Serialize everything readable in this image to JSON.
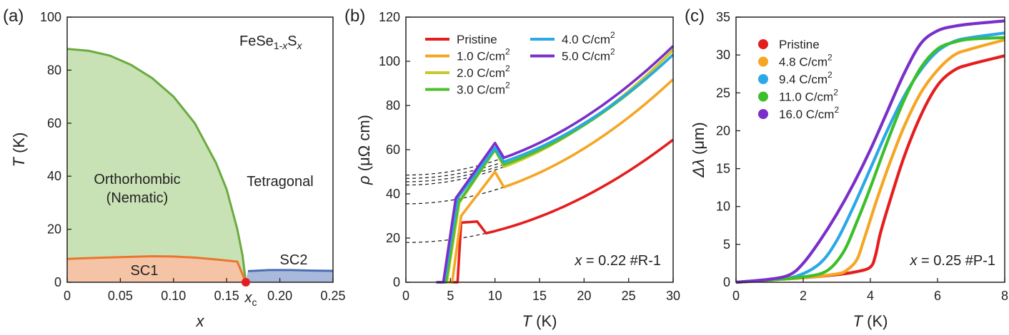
{
  "chart_data": [
    {
      "type": "area",
      "panel_label": "(a)",
      "title": "FeSe1-xSx",
      "title_main": "FeSe",
      "title_sub1": "1-",
      "title_sub2": "x",
      "title_s": "S",
      "title_sub3": "x",
      "xlabel": "x",
      "ylabel_italic": "T",
      "ylabel_unit": " (K)",
      "xlim": [
        0,
        0.25
      ],
      "ylim": [
        0,
        100
      ],
      "xticks": [
        0,
        0.05,
        0.1,
        0.15,
        0.2,
        0.25
      ],
      "xtick_labels": [
        "0",
        "0.05",
        "0.10",
        "0.15",
        "0.20",
        "0.25"
      ],
      "yticks": [
        0,
        20,
        40,
        60,
        80,
        100
      ],
      "ytick_labels": [
        "0",
        "20",
        "40",
        "60",
        "80",
        "100"
      ],
      "regions": {
        "nematic": {
          "name": "Orthorhombic (Nematic)",
          "line1": "Orthorhombic",
          "line2": "(Nematic)",
          "color": "#6aaa3f",
          "fill": "#c9e2b5",
          "x": [
            0,
            0.02,
            0.04,
            0.06,
            0.08,
            0.1,
            0.12,
            0.14,
            0.15,
            0.16,
            0.165,
            0.168
          ],
          "y": [
            88,
            87.3,
            85.5,
            82,
            77,
            70,
            60,
            45,
            35,
            20,
            10,
            0
          ]
        },
        "sc1": {
          "name": "SC1",
          "color": "#e8762d",
          "fill": "#f5c4a6",
          "x": [
            0,
            0.02,
            0.05,
            0.08,
            0.1,
            0.12,
            0.14,
            0.16,
            0.168
          ],
          "y": [
            8.8,
            9.1,
            9.5,
            9.8,
            9.7,
            9.3,
            8.6,
            7.8,
            0
          ]
        },
        "sc2": {
          "name": "SC2",
          "color": "#4a6db3",
          "fill": "#a9b9dc",
          "x": [
            0.168,
            0.17,
            0.19,
            0.21,
            0.23,
            0.25
          ],
          "y": [
            0,
            4.2,
            4.6,
            4.6,
            4.4,
            4.3
          ]
        }
      },
      "tetragonal_label": "Tetragonal",
      "critical_point": {
        "x": 0.168,
        "y": 0,
        "label_main": "x",
        "label_sub": "c",
        "color": "#e41e1e"
      }
    },
    {
      "type": "line",
      "panel_label": "(b)",
      "xlabel_italic": "T",
      "xlabel_unit": " (K)",
      "ylabel_italic": "ρ",
      "ylabel_unit": " (μΩ cm)",
      "xlim": [
        0,
        30
      ],
      "ylim": [
        0,
        120
      ],
      "xticks": [
        0,
        5,
        10,
        15,
        20,
        25,
        30
      ],
      "xtick_labels": [
        "0",
        "5",
        "10",
        "15",
        "20",
        "25",
        "30"
      ],
      "yticks": [
        0,
        20,
        40,
        60,
        80,
        100,
        120
      ],
      "ytick_labels": [
        "0",
        "20",
        "40",
        "60",
        "80",
        "100",
        "120"
      ],
      "annotation_italic": "x",
      "annotation_rest": " = 0.22 #R-1",
      "series": [
        {
          "name": "Pristine",
          "legend_main": "Pristine",
          "legend_sup": "",
          "color": "#e41e1e",
          "onset": 5.8,
          "t_end": 6.2,
          "r_end": 27,
          "t_knee": 8,
          "r_knee": 27.5,
          "fit": [
            18,
            0.0517
          ]
        },
        {
          "name": "1.0 C/cm2",
          "legend_main": "1.0 C/cm",
          "legend_sup": "2",
          "color": "#f5a623",
          "onset": 5.2,
          "t_end": 6.2,
          "r_end": 30,
          "t_knee": 10,
          "r_knee": 50,
          "fit": [
            35.5,
            0.0626
          ]
        },
        {
          "name": "2.0 C/cm2",
          "legend_main": "2.0 C/cm",
          "legend_sup": "2",
          "color": "#c8c82a",
          "onset": 4.6,
          "t_end": 6,
          "r_end": 36,
          "t_knee": 10,
          "r_knee": 60,
          "fit": [
            44,
            0.068
          ]
        },
        {
          "name": "3.0 C/cm2",
          "legend_main": "3.0 C/cm",
          "legend_sup": "2",
          "color": "#4cbf2a",
          "onset": 4.5,
          "t_end": 5.9,
          "r_end": 36,
          "t_knee": 10,
          "r_knee": 60,
          "fit": [
            45.5,
            0.064
          ]
        },
        {
          "name": "4.0 C/cm2",
          "legend_main": "4.0 C/cm",
          "legend_sup": "2",
          "color": "#2ba8e6",
          "onset": 4.3,
          "t_end": 5.8,
          "r_end": 38,
          "t_knee": 10,
          "r_knee": 61,
          "fit": [
            47,
            0.0622
          ]
        },
        {
          "name": "5.0 C/cm2",
          "legend_main": "5.0 C/cm",
          "legend_sup": "2",
          "color": "#7a2fc9",
          "onset": 4.2,
          "t_end": 5.6,
          "r_end": 38,
          "t_knee": 10,
          "r_knee": 63,
          "fit": [
            48.5,
            0.0649
          ]
        }
      ]
    },
    {
      "type": "line",
      "panel_label": "(c)",
      "xlabel_italic": "T",
      "xlabel_unit": " (K)",
      "ylabel_italic": "Δλ",
      "ylabel_unit": " (μm)",
      "xlim": [
        0,
        8
      ],
      "ylim": [
        0,
        35
      ],
      "xticks": [
        0,
        2,
        4,
        6,
        8
      ],
      "xtick_labels": [
        "0",
        "2",
        "4",
        "6",
        "8"
      ],
      "yticks": [
        0,
        5,
        10,
        15,
        20,
        25,
        30,
        35
      ],
      "ytick_labels": [
        "0",
        "5",
        "10",
        "15",
        "20",
        "25",
        "30",
        "35"
      ],
      "annotation_italic": "x",
      "annotation_rest": " = 0.25 #P-1",
      "series": [
        {
          "name": "Pristine",
          "legend_main": "Pristine",
          "legend_sup": "",
          "color": "#e41e1e",
          "x": [
            0,
            1,
            2,
            3,
            3.6,
            4.0,
            4.15,
            4.3,
            4.6,
            5.0,
            5.5,
            6.0,
            6.5,
            7.0,
            8.0
          ],
          "y": [
            0,
            0.3,
            0.6,
            1.0,
            1.4,
            2.0,
            3.5,
            6.5,
            11,
            16.5,
            22,
            26,
            28,
            28.8,
            29.9
          ]
        },
        {
          "name": "4.8 C/cm2",
          "legend_main": "4.8 C/cm",
          "legend_sup": "2",
          "color": "#f5a623",
          "x": [
            0,
            1,
            2,
            3,
            3.3,
            3.6,
            3.8,
            4.2,
            4.6,
            5.0,
            5.5,
            6.0,
            6.5,
            7.0,
            8.0
          ],
          "y": [
            0,
            0.3,
            0.6,
            1.1,
            1.6,
            3.0,
            5.5,
            11,
            16,
            20.5,
            25,
            28,
            30,
            30.8,
            32
          ]
        },
        {
          "name": "9.4 C/cm2",
          "legend_main": "9.4 C/cm",
          "legend_sup": "2",
          "color": "#2ba8e6",
          "x": [
            0,
            1,
            1.8,
            2.5,
            3.0,
            3.5,
            4.0,
            4.5,
            5.0,
            5.5,
            6.0,
            6.5,
            7.0,
            8.0
          ],
          "y": [
            0,
            0.3,
            0.8,
            2.5,
            5.5,
            10,
            15,
            20,
            24.5,
            28,
            30.5,
            31.8,
            32.3,
            32.9
          ]
        },
        {
          "name": "11.0 C/cm2",
          "legend_main": "11.0 C/cm",
          "legend_sup": "2",
          "color": "#3cbf2a",
          "x": [
            0,
            1,
            2,
            2.7,
            3.2,
            3.6,
            4.0,
            4.5,
            5.0,
            5.5,
            6.0,
            6.5,
            7.0,
            8.0
          ],
          "y": [
            0,
            0.3,
            0.7,
            1.5,
            4,
            8,
            12.5,
            18.5,
            24,
            28.3,
            30.8,
            31.7,
            32.1,
            32.3
          ]
        },
        {
          "name": "16.0 C/cm2",
          "legend_main": "16.0 C/cm",
          "legend_sup": "2",
          "color": "#7a2fc9",
          "x": [
            0,
            1,
            1.6,
            2.0,
            2.5,
            3.0,
            3.5,
            4.0,
            4.5,
            5.0,
            5.5,
            6.0,
            6.5,
            7.0,
            8.0
          ],
          "y": [
            0,
            0.4,
            1.0,
            2.5,
            5.5,
            9,
            13,
            17.5,
            22.5,
            27.5,
            31.5,
            33.2,
            33.8,
            34.1,
            34.5
          ]
        }
      ]
    }
  ]
}
